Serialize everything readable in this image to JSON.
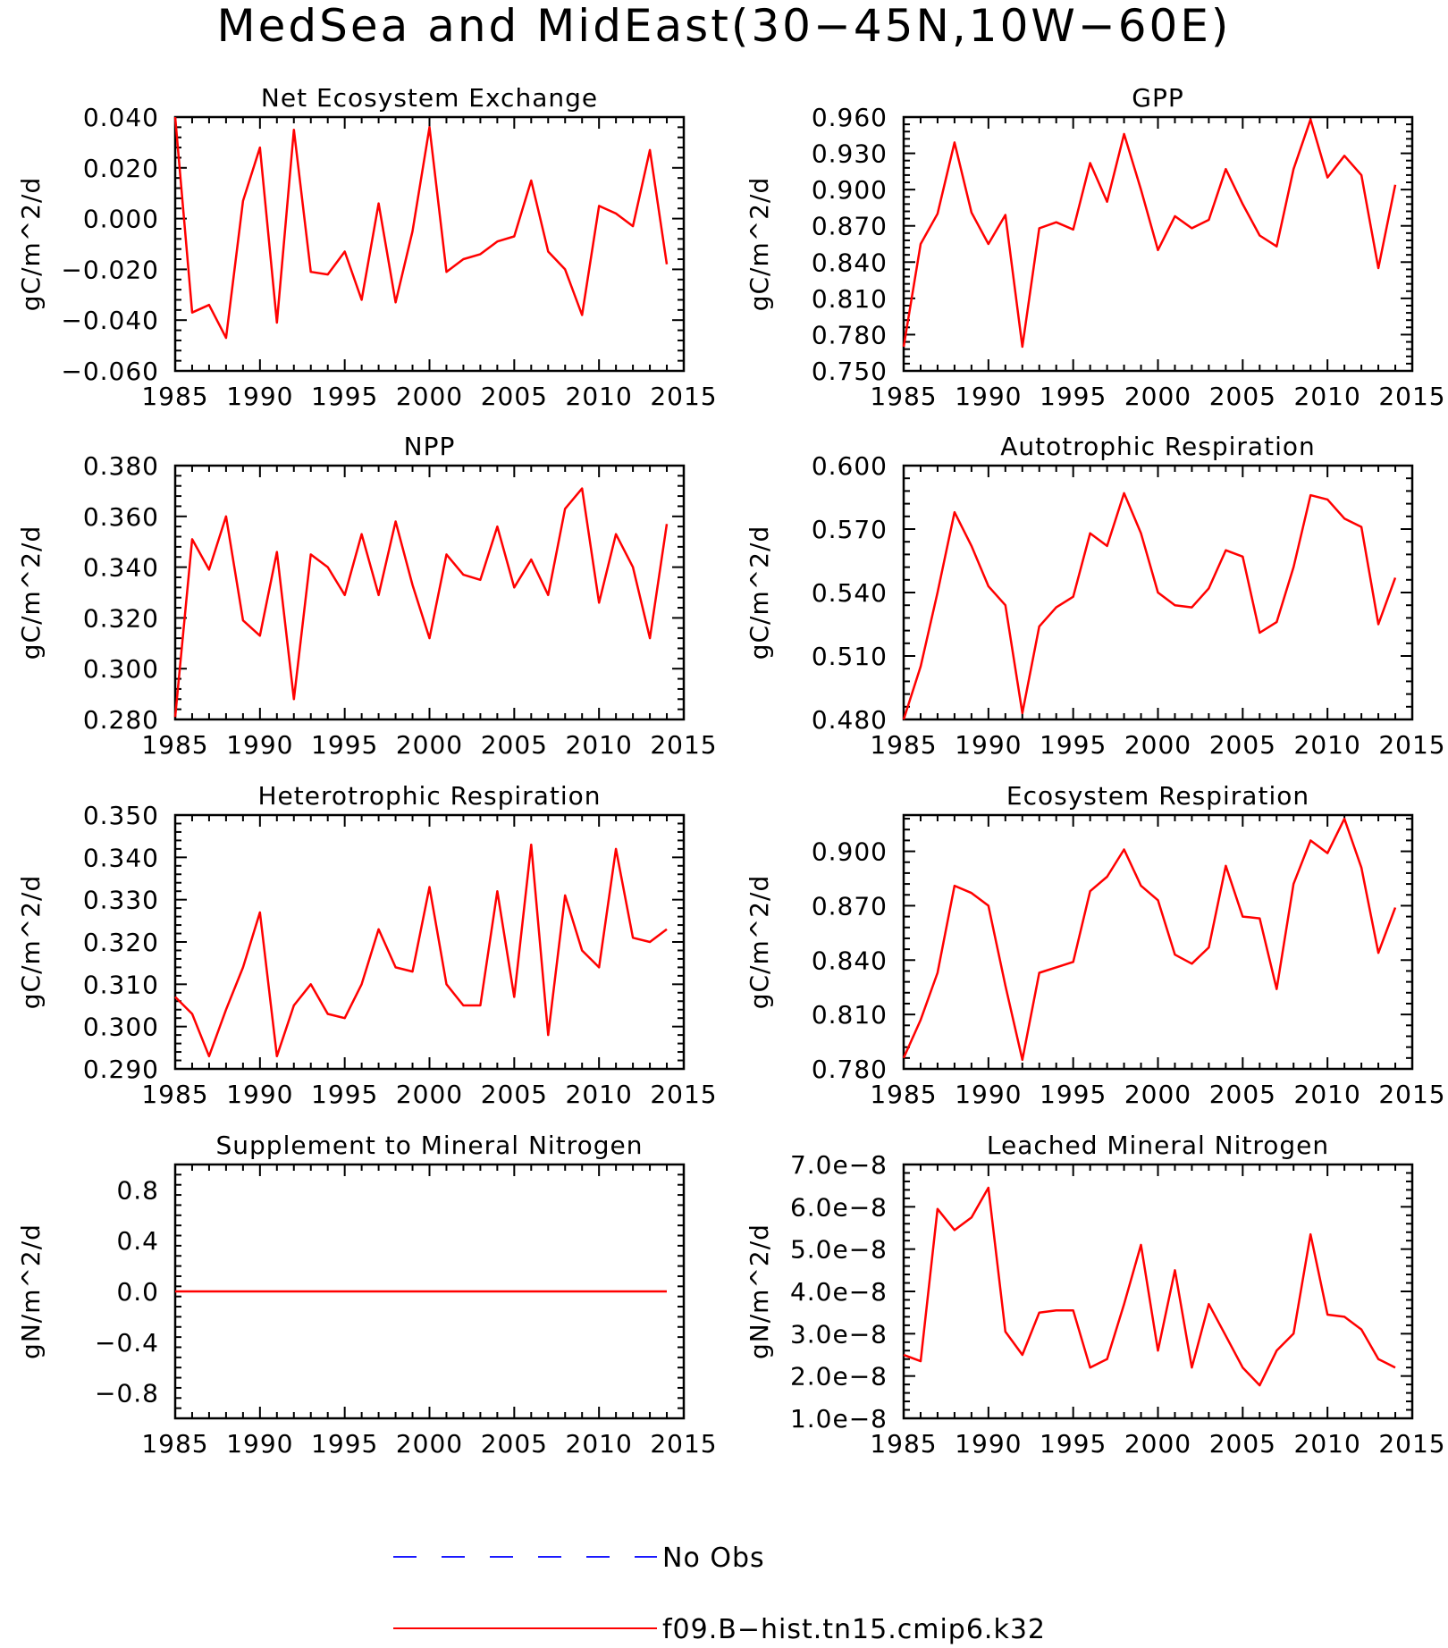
{
  "figure": {
    "title": "MedSea and MidEast(30−45N,10W−60E)"
  },
  "legend": [
    {
      "label": "No Obs",
      "color": "#1a1aff",
      "style": "dashed"
    },
    {
      "label": "f09.B−hist.tn15.cmip6.k32",
      "color": "#ff0000",
      "style": "solid"
    }
  ],
  "chart_data": [
    {
      "type": "line",
      "title": "Net Ecosystem Exchange",
      "ylabel": "gC/m^2/d",
      "xlim": [
        1985,
        2015
      ],
      "xticks": [
        1985,
        1990,
        1995,
        2000,
        2005,
        2010,
        2015
      ],
      "ylim": [
        -0.06,
        0.04
      ],
      "yticks": [
        -0.06,
        -0.04,
        -0.02,
        0.0,
        0.02,
        0.04
      ],
      "ytick_labels": [
        "−0.060",
        "−0.040",
        "−0.020",
        "0.000",
        "0.020",
        "0.040"
      ],
      "series": [
        {
          "color": "#ff0000",
          "x": [
            1985,
            1986,
            1987,
            1988,
            1989,
            1990,
            1991,
            1992,
            1993,
            1994,
            1995,
            1996,
            1997,
            1998,
            1999,
            2000,
            2001,
            2002,
            2003,
            2004,
            2005,
            2006,
            2007,
            2008,
            2009,
            2010,
            2011,
            2012,
            2013,
            2014
          ],
          "values": [
            0.04,
            -0.037,
            -0.034,
            -0.047,
            0.007,
            0.028,
            -0.041,
            0.035,
            -0.021,
            -0.022,
            -0.013,
            -0.032,
            0.006,
            -0.033,
            -0.005,
            0.036,
            -0.021,
            -0.016,
            -0.014,
            -0.009,
            -0.007,
            0.015,
            -0.013,
            -0.02,
            -0.038,
            0.005,
            0.002,
            -0.003,
            0.027,
            -0.018
          ]
        }
      ]
    },
    {
      "type": "line",
      "title": "GPP",
      "ylabel": "gC/m^2/d",
      "xlim": [
        1985,
        2015
      ],
      "xticks": [
        1985,
        1990,
        1995,
        2000,
        2005,
        2010,
        2015
      ],
      "ylim": [
        0.75,
        0.96
      ],
      "yticks": [
        0.75,
        0.78,
        0.81,
        0.84,
        0.87,
        0.9,
        0.93,
        0.96
      ],
      "ytick_labels": [
        "0.750",
        "0.780",
        "0.810",
        "0.840",
        "0.870",
        "0.900",
        "0.930",
        "0.960"
      ],
      "series": [
        {
          "color": "#ff0000",
          "x": [
            1985,
            1986,
            1987,
            1988,
            1989,
            1990,
            1991,
            1992,
            1993,
            1994,
            1995,
            1996,
            1997,
            1998,
            1999,
            2000,
            2001,
            2002,
            2003,
            2004,
            2005,
            2006,
            2007,
            2008,
            2009,
            2010,
            2011,
            2012,
            2013,
            2014
          ],
          "values": [
            0.77,
            0.855,
            0.88,
            0.939,
            0.881,
            0.855,
            0.879,
            0.77,
            0.868,
            0.873,
            0.867,
            0.922,
            0.89,
            0.946,
            0.9,
            0.85,
            0.878,
            0.868,
            0.875,
            0.917,
            0.888,
            0.862,
            0.853,
            0.917,
            0.958,
            0.91,
            0.928,
            0.912,
            0.835,
            0.904
          ]
        }
      ]
    },
    {
      "type": "line",
      "title": "NPP",
      "ylabel": "gC/m^2/d",
      "xlim": [
        1985,
        2015
      ],
      "xticks": [
        1985,
        1990,
        1995,
        2000,
        2005,
        2010,
        2015
      ],
      "ylim": [
        0.28,
        0.38
      ],
      "yticks": [
        0.28,
        0.3,
        0.32,
        0.34,
        0.36,
        0.38
      ],
      "ytick_labels": [
        "0.280",
        "0.300",
        "0.320",
        "0.340",
        "0.360",
        "0.380"
      ],
      "series": [
        {
          "color": "#ff0000",
          "x": [
            1985,
            1986,
            1987,
            1988,
            1989,
            1990,
            1991,
            1992,
            1993,
            1994,
            1995,
            1996,
            1997,
            1998,
            1999,
            2000,
            2001,
            2002,
            2003,
            2004,
            2005,
            2006,
            2007,
            2008,
            2009,
            2010,
            2011,
            2012,
            2013,
            2014
          ],
          "values": [
            0.281,
            0.351,
            0.339,
            0.36,
            0.319,
            0.313,
            0.346,
            0.288,
            0.345,
            0.34,
            0.329,
            0.353,
            0.329,
            0.358,
            0.333,
            0.312,
            0.345,
            0.337,
            0.335,
            0.356,
            0.332,
            0.343,
            0.329,
            0.363,
            0.371,
            0.326,
            0.353,
            0.34,
            0.312,
            0.357
          ]
        }
      ]
    },
    {
      "type": "line",
      "title": "Autotrophic Respiration",
      "ylabel": "gC/m^2/d",
      "xlim": [
        1985,
        2015
      ],
      "xticks": [
        1985,
        1990,
        1995,
        2000,
        2005,
        2010,
        2015
      ],
      "ylim": [
        0.48,
        0.6
      ],
      "yticks": [
        0.48,
        0.51,
        0.54,
        0.57,
        0.6
      ],
      "ytick_labels": [
        "0.480",
        "0.510",
        "0.540",
        "0.570",
        "0.600"
      ],
      "series": [
        {
          "color": "#ff0000",
          "x": [
            1985,
            1986,
            1987,
            1988,
            1989,
            1990,
            1991,
            1992,
            1993,
            1994,
            1995,
            1996,
            1997,
            1998,
            1999,
            2000,
            2001,
            2002,
            2003,
            2004,
            2005,
            2006,
            2007,
            2008,
            2009,
            2010,
            2011,
            2012,
            2013,
            2014
          ],
          "values": [
            0.48,
            0.505,
            0.54,
            0.578,
            0.562,
            0.543,
            0.534,
            0.483,
            0.524,
            0.533,
            0.538,
            0.568,
            0.562,
            0.587,
            0.568,
            0.54,
            0.534,
            0.533,
            0.542,
            0.56,
            0.557,
            0.521,
            0.526,
            0.552,
            0.586,
            0.584,
            0.575,
            0.571,
            0.525,
            0.547
          ]
        }
      ]
    },
    {
      "type": "line",
      "title": "Heterotrophic Respiration",
      "ylabel": "gC/m^2/d",
      "xlim": [
        1985,
        2015
      ],
      "xticks": [
        1985,
        1990,
        1995,
        2000,
        2005,
        2010,
        2015
      ],
      "ylim": [
        0.29,
        0.35
      ],
      "yticks": [
        0.29,
        0.3,
        0.31,
        0.32,
        0.33,
        0.34,
        0.35
      ],
      "ytick_labels": [
        "0.290",
        "0.300",
        "0.310",
        "0.320",
        "0.330",
        "0.340",
        "0.350"
      ],
      "series": [
        {
          "color": "#ff0000",
          "x": [
            1985,
            1986,
            1987,
            1988,
            1989,
            1990,
            1991,
            1992,
            1993,
            1994,
            1995,
            1996,
            1997,
            1998,
            1999,
            2000,
            2001,
            2002,
            2003,
            2004,
            2005,
            2006,
            2007,
            2008,
            2009,
            2010,
            2011,
            2012,
            2013,
            2014
          ],
          "values": [
            0.307,
            0.303,
            0.293,
            0.304,
            0.314,
            0.327,
            0.293,
            0.305,
            0.31,
            0.303,
            0.302,
            0.31,
            0.323,
            0.314,
            0.313,
            0.333,
            0.31,
            0.305,
            0.305,
            0.332,
            0.307,
            0.343,
            0.298,
            0.331,
            0.318,
            0.314,
            0.342,
            0.321,
            0.32,
            0.323
          ]
        }
      ]
    },
    {
      "type": "line",
      "title": "Ecosystem Respiration",
      "ylabel": "gC/m^2/d",
      "xlim": [
        1985,
        2015
      ],
      "xticks": [
        1985,
        1990,
        1995,
        2000,
        2005,
        2010,
        2015
      ],
      "ylim": [
        0.78,
        0.92
      ],
      "yticks": [
        0.78,
        0.81,
        0.84,
        0.87,
        0.9
      ],
      "ytick_labels": [
        "0.780",
        "0.810",
        "0.840",
        "0.870",
        "0.900"
      ],
      "series": [
        {
          "color": "#ff0000",
          "x": [
            1985,
            1986,
            1987,
            1988,
            1989,
            1990,
            1991,
            1992,
            1993,
            1994,
            1995,
            1996,
            1997,
            1998,
            1999,
            2000,
            2001,
            2002,
            2003,
            2004,
            2005,
            2006,
            2007,
            2008,
            2009,
            2010,
            2011,
            2012,
            2013,
            2014
          ],
          "values": [
            0.786,
            0.807,
            0.833,
            0.881,
            0.877,
            0.87,
            0.826,
            0.785,
            0.833,
            0.836,
            0.839,
            0.878,
            0.886,
            0.901,
            0.881,
            0.873,
            0.843,
            0.838,
            0.847,
            0.892,
            0.864,
            0.863,
            0.824,
            0.882,
            0.906,
            0.899,
            0.918,
            0.891,
            0.844,
            0.869
          ]
        }
      ]
    },
    {
      "type": "line",
      "title": "Supplement to Mineral Nitrogen",
      "ylabel": "gN/m^2/d",
      "xlim": [
        1985,
        2015
      ],
      "xticks": [
        1985,
        1990,
        1995,
        2000,
        2005,
        2010,
        2015
      ],
      "ylim": [
        -1.0,
        1.0
      ],
      "yticks": [
        -0.8,
        -0.4,
        0.0,
        0.4,
        0.8
      ],
      "ytick_labels": [
        "−0.8",
        "−0.4",
        "0.0",
        "0.4",
        "0.8"
      ],
      "series": [
        {
          "color": "#ff0000",
          "x": [
            1985,
            1986,
            1987,
            1988,
            1989,
            1990,
            1991,
            1992,
            1993,
            1994,
            1995,
            1996,
            1997,
            1998,
            1999,
            2000,
            2001,
            2002,
            2003,
            2004,
            2005,
            2006,
            2007,
            2008,
            2009,
            2010,
            2011,
            2012,
            2013,
            2014
          ],
          "values": [
            0,
            0,
            0,
            0,
            0,
            0,
            0,
            0,
            0,
            0,
            0,
            0,
            0,
            0,
            0,
            0,
            0,
            0,
            0,
            0,
            0,
            0,
            0,
            0,
            0,
            0,
            0,
            0,
            0,
            0
          ]
        }
      ]
    },
    {
      "type": "line",
      "title": "Leached Mineral Nitrogen",
      "ylabel": "gN/m^2/d",
      "xlim": [
        1985,
        2015
      ],
      "xticks": [
        1985,
        1990,
        1995,
        2000,
        2005,
        2010,
        2015
      ],
      "ylim": [
        1e-08,
        7e-08
      ],
      "yticks": [
        1e-08,
        2e-08,
        3e-08,
        4e-08,
        5e-08,
        6e-08,
        7e-08
      ],
      "ytick_labels": [
        "1.0e−8",
        "2.0e−8",
        "3.0e−8",
        "4.0e−8",
        "5.0e−8",
        "6.0e−8",
        "7.0e−8"
      ],
      "series": [
        {
          "color": "#ff0000",
          "x": [
            1985,
            1986,
            1987,
            1988,
            1989,
            1990,
            1991,
            1992,
            1993,
            1994,
            1995,
            1996,
            1997,
            1998,
            1999,
            2000,
            2001,
            2002,
            2003,
            2004,
            2005,
            2006,
            2007,
            2008,
            2009,
            2010,
            2011,
            2012,
            2013,
            2014
          ],
          "values": [
            2.5e-08,
            2.35e-08,
            5.95e-08,
            5.45e-08,
            5.75e-08,
            6.45e-08,
            3.05e-08,
            2.5e-08,
            3.5e-08,
            3.55e-08,
            3.55e-08,
            2.2e-08,
            2.4e-08,
            3.7e-08,
            5.1e-08,
            2.6e-08,
            4.5e-08,
            2.2e-08,
            3.7e-08,
            2.95e-08,
            2.2e-08,
            1.78e-08,
            2.6e-08,
            3e-08,
            5.35e-08,
            3.45e-08,
            3.4e-08,
            3.1e-08,
            2.4e-08,
            2.2e-08
          ]
        }
      ]
    }
  ]
}
